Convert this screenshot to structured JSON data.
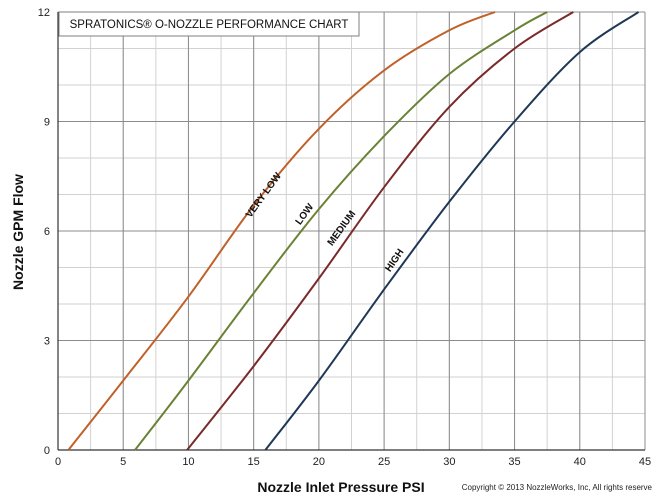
{
  "chart_data": {
    "type": "line",
    "title": "SPRATONICS® O-NOZZLE PERFORMANCE CHART",
    "xlabel": "Nozzle Inlet Pressure PSI",
    "ylabel": "Nozzle GPM Flow",
    "xlim": [
      0,
      45
    ],
    "ylim": [
      0,
      12
    ],
    "x_ticks": [
      "0",
      "5",
      "10",
      "15",
      "20",
      "25",
      "30",
      "35",
      "40",
      "45"
    ],
    "y_ticks": [
      "0",
      "3",
      "6",
      "9",
      "12"
    ],
    "grid": true,
    "series": [
      {
        "name": "VERY LOW",
        "color": "#c0612a",
        "x": [
          0.8,
          5,
          10,
          15,
          20,
          25,
          30,
          33.5
        ],
        "y": [
          0,
          1.9,
          4.2,
          6.7,
          8.8,
          10.4,
          11.5,
          12
        ]
      },
      {
        "name": "LOW",
        "color": "#6b8236",
        "x": [
          5.9,
          10,
          15,
          20,
          25,
          30,
          35,
          37.5
        ],
        "y": [
          0,
          1.9,
          4.3,
          6.6,
          8.6,
          10.3,
          11.5,
          12
        ]
      },
      {
        "name": "MEDIUM",
        "color": "#7a2a2a",
        "x": [
          9.9,
          15,
          20,
          25,
          30,
          35,
          39.5
        ],
        "y": [
          0,
          2.3,
          4.7,
          7.2,
          9.4,
          11.0,
          12
        ]
      },
      {
        "name": "HIGH",
        "color": "#1f3855",
        "x": [
          15.9,
          20,
          25,
          30,
          35,
          40,
          44.5
        ],
        "y": [
          0,
          1.9,
          4.4,
          6.8,
          9.0,
          10.9,
          12
        ]
      }
    ],
    "copyright": "Copyright © 2013 NozzleWorks, Inc, All rights reserve"
  }
}
